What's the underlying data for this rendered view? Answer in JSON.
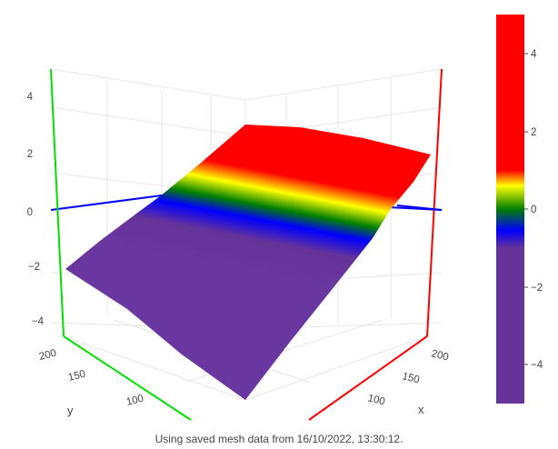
{
  "chart_data": {
    "type": "surface",
    "title": "",
    "xlabel": "x",
    "ylabel": "y",
    "zlabel": "",
    "x_ticks": [
      "100",
      "150",
      "200"
    ],
    "y_ticks": [
      "100",
      "150",
      "200"
    ],
    "z_ticks": [
      "4",
      "2",
      "0",
      "−2",
      "−4"
    ],
    "zlim": [
      -5,
      5
    ],
    "surface": {
      "description_values": "planar mesh rising from about -2.3 at the front (low x, high y) to about 3.5 at the back corner",
      "corner_z": {
        "x_low_y_low": -5,
        "x_low_y_high": -2.3,
        "x_high_y_low": 1.9,
        "x_high_y_high": 3.5
      }
    },
    "colorbar": {
      "ticks": [
        "4",
        "2",
        "0",
        "−2",
        "−4"
      ],
      "range": [
        -5,
        5
      ],
      "colors": {
        "high": "#ff0000",
        "upper_mid": "#ffff00",
        "zero": "#008000",
        "lower_mid": "#0000ff",
        "low": "#663399"
      }
    },
    "axis_colors": {
      "x": "#ff0000",
      "y": "#00ff00",
      "zero_line": "#0000ff"
    },
    "grid": true
  },
  "footer": {
    "caption": "Using saved mesh data from 16/10/2022, 13:30:12."
  }
}
